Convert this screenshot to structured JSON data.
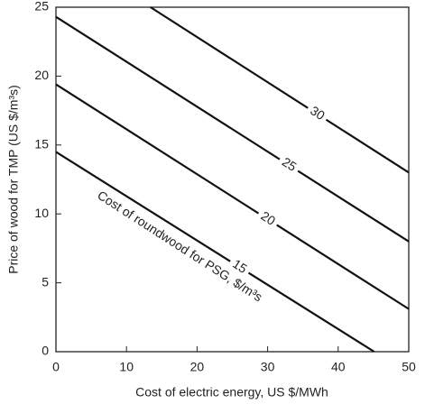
{
  "chart_data": {
    "type": "line",
    "x_label": "Cost of electric energy, US $/MWh",
    "y_label": "Price of wood for TMP (US $/m³s)",
    "annotation": "Cost of roundwood for PSG, $/m³s",
    "xlim": [
      0,
      50
    ],
    "xticks": [
      0,
      10,
      20,
      30,
      40,
      50
    ],
    "ylim": [
      0,
      25
    ],
    "yticks": [
      0,
      5,
      10,
      15,
      20,
      25
    ],
    "series": [
      {
        "name": "15",
        "color": "#111111",
        "x": [
          0,
          45.1
        ],
        "values": [
          14.5,
          0
        ]
      },
      {
        "name": "20",
        "color": "#111111",
        "x": [
          0,
          50
        ],
        "values": [
          19.4,
          3.1
        ]
      },
      {
        "name": "25",
        "color": "#111111",
        "x": [
          0,
          50
        ],
        "values": [
          24.3,
          8.0
        ]
      },
      {
        "name": "30",
        "color": "#111111",
        "x": [
          13.4,
          50
        ],
        "values": [
          25,
          13.0
        ]
      }
    ]
  }
}
